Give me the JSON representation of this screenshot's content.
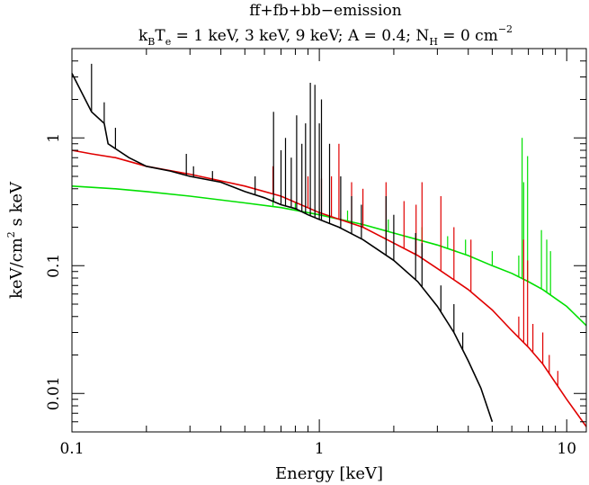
{
  "chart_data": {
    "type": "line",
    "title": "ff+fb+bb−emission",
    "subtitle": {
      "k": "k",
      "B": "B",
      "T": "T",
      "e": "e",
      "rest1": " = 1 keV, 3 keV, 9 keV; A = 0.4; N",
      "H": "H",
      "rest2": " = 0 cm",
      "exp": "−2"
    },
    "xlabel": "Energy [keV]",
    "ylabel": {
      "pre": "keV/cm",
      "exp": "2",
      "post": " s keV"
    },
    "x_scale": "log",
    "y_scale": "log",
    "xlim": [
      0.1,
      12
    ],
    "ylim": [
      0.005,
      5
    ],
    "x_ticks": [
      {
        "value": 0.1,
        "label": "0.1"
      },
      {
        "value": 1,
        "label": "1"
      },
      {
        "value": 10,
        "label": "10"
      }
    ],
    "y_ticks": [
      {
        "value": 0.01,
        "label": "0.01"
      },
      {
        "value": 0.1,
        "label": "0.1"
      },
      {
        "value": 1,
        "label": "1"
      }
    ],
    "grid": false,
    "legend": "none",
    "series": [
      {
        "color": "#00e000",
        "continuum": [
          [
            0.1,
            0.42
          ],
          [
            0.15,
            0.4
          ],
          [
            0.2,
            0.38
          ],
          [
            0.3,
            0.35
          ],
          [
            0.5,
            0.31
          ],
          [
            0.7,
            0.285
          ],
          [
            1.0,
            0.25
          ],
          [
            1.5,
            0.21
          ],
          [
            2.0,
            0.18
          ],
          [
            3.0,
            0.145
          ],
          [
            4.0,
            0.12
          ],
          [
            5.0,
            0.1
          ],
          [
            6.0,
            0.087
          ],
          [
            7.0,
            0.075
          ],
          [
            8.0,
            0.065
          ],
          [
            10.0,
            0.048
          ],
          [
            12.0,
            0.034
          ]
        ],
        "lines": [
          [
            0.65,
            0.34
          ],
          [
            0.8,
            0.31
          ],
          [
            1.0,
            0.28
          ],
          [
            1.3,
            0.27
          ],
          [
            1.9,
            0.23
          ],
          [
            2.6,
            0.2
          ],
          [
            3.3,
            0.17
          ],
          [
            3.9,
            0.16
          ],
          [
            5.0,
            0.13
          ],
          [
            6.4,
            0.12
          ],
          [
            6.6,
            1.0
          ],
          [
            6.7,
            0.45
          ],
          [
            6.95,
            0.72
          ],
          [
            7.9,
            0.19
          ],
          [
            8.3,
            0.16
          ],
          [
            8.6,
            0.13
          ]
        ]
      },
      {
        "color": "#e00000",
        "continuum": [
          [
            0.1,
            0.8
          ],
          [
            0.12,
            0.75
          ],
          [
            0.15,
            0.7
          ],
          [
            0.2,
            0.6
          ],
          [
            0.3,
            0.52
          ],
          [
            0.5,
            0.42
          ],
          [
            0.7,
            0.35
          ],
          [
            1.0,
            0.26
          ],
          [
            1.5,
            0.2
          ],
          [
            2.0,
            0.15
          ],
          [
            2.5,
            0.12
          ],
          [
            3.0,
            0.095
          ],
          [
            4.0,
            0.065
          ],
          [
            5.0,
            0.045
          ],
          [
            6.0,
            0.031
          ],
          [
            7.0,
            0.023
          ],
          [
            8.0,
            0.017
          ],
          [
            10.0,
            0.009
          ],
          [
            12.0,
            0.0055
          ]
        ],
        "lines": [
          [
            0.65,
            0.6
          ],
          [
            0.9,
            0.5
          ],
          [
            1.02,
            0.48
          ],
          [
            1.12,
            0.5
          ],
          [
            1.2,
            0.9
          ],
          [
            1.35,
            0.45
          ],
          [
            1.5,
            0.4
          ],
          [
            1.86,
            0.45
          ],
          [
            2.2,
            0.32
          ],
          [
            2.46,
            0.3
          ],
          [
            2.6,
            0.45
          ],
          [
            3.1,
            0.35
          ],
          [
            3.5,
            0.2
          ],
          [
            4.1,
            0.16
          ],
          [
            6.4,
            0.04
          ],
          [
            6.7,
            0.16
          ],
          [
            6.95,
            0.11
          ],
          [
            7.3,
            0.035
          ],
          [
            8.0,
            0.03
          ],
          [
            8.5,
            0.02
          ],
          [
            9.2,
            0.015
          ]
        ]
      },
      {
        "color": "#000000",
        "continuum": [
          [
            0.1,
            3.2
          ],
          [
            0.12,
            1.6
          ],
          [
            0.135,
            1.3
          ],
          [
            0.14,
            0.9
          ],
          [
            0.17,
            0.7
          ],
          [
            0.2,
            0.6
          ],
          [
            0.25,
            0.55
          ],
          [
            0.3,
            0.5
          ],
          [
            0.4,
            0.45
          ],
          [
            0.5,
            0.38
          ],
          [
            0.6,
            0.34
          ],
          [
            0.7,
            0.3
          ],
          [
            0.8,
            0.28
          ],
          [
            0.9,
            0.25
          ],
          [
            1.0,
            0.23
          ],
          [
            1.2,
            0.2
          ],
          [
            1.5,
            0.16
          ],
          [
            2.0,
            0.11
          ],
          [
            2.5,
            0.075
          ],
          [
            3.0,
            0.048
          ],
          [
            3.5,
            0.03
          ],
          [
            4.0,
            0.018
          ],
          [
            4.5,
            0.011
          ],
          [
            5.0,
            0.006
          ]
        ],
        "lines": [
          [
            0.12,
            3.8
          ],
          [
            0.135,
            1.9
          ],
          [
            0.15,
            1.2
          ],
          [
            0.29,
            0.75
          ],
          [
            0.31,
            0.6
          ],
          [
            0.37,
            0.55
          ],
          [
            0.55,
            0.5
          ],
          [
            0.653,
            1.6
          ],
          [
            0.7,
            0.8
          ],
          [
            0.73,
            1.0
          ],
          [
            0.77,
            0.7
          ],
          [
            0.81,
            1.5
          ],
          [
            0.85,
            0.9
          ],
          [
            0.88,
            1.3
          ],
          [
            0.92,
            2.7
          ],
          [
            0.96,
            2.6
          ],
          [
            1.0,
            1.3
          ],
          [
            1.02,
            2.0
          ],
          [
            1.1,
            0.9
          ],
          [
            1.22,
            0.5
          ],
          [
            1.35,
            0.35
          ],
          [
            1.48,
            0.3
          ],
          [
            1.86,
            0.35
          ],
          [
            2.0,
            0.25
          ],
          [
            2.45,
            0.18
          ],
          [
            2.6,
            0.15
          ],
          [
            3.1,
            0.07
          ],
          [
            3.5,
            0.05
          ],
          [
            3.8,
            0.03
          ]
        ]
      }
    ]
  }
}
